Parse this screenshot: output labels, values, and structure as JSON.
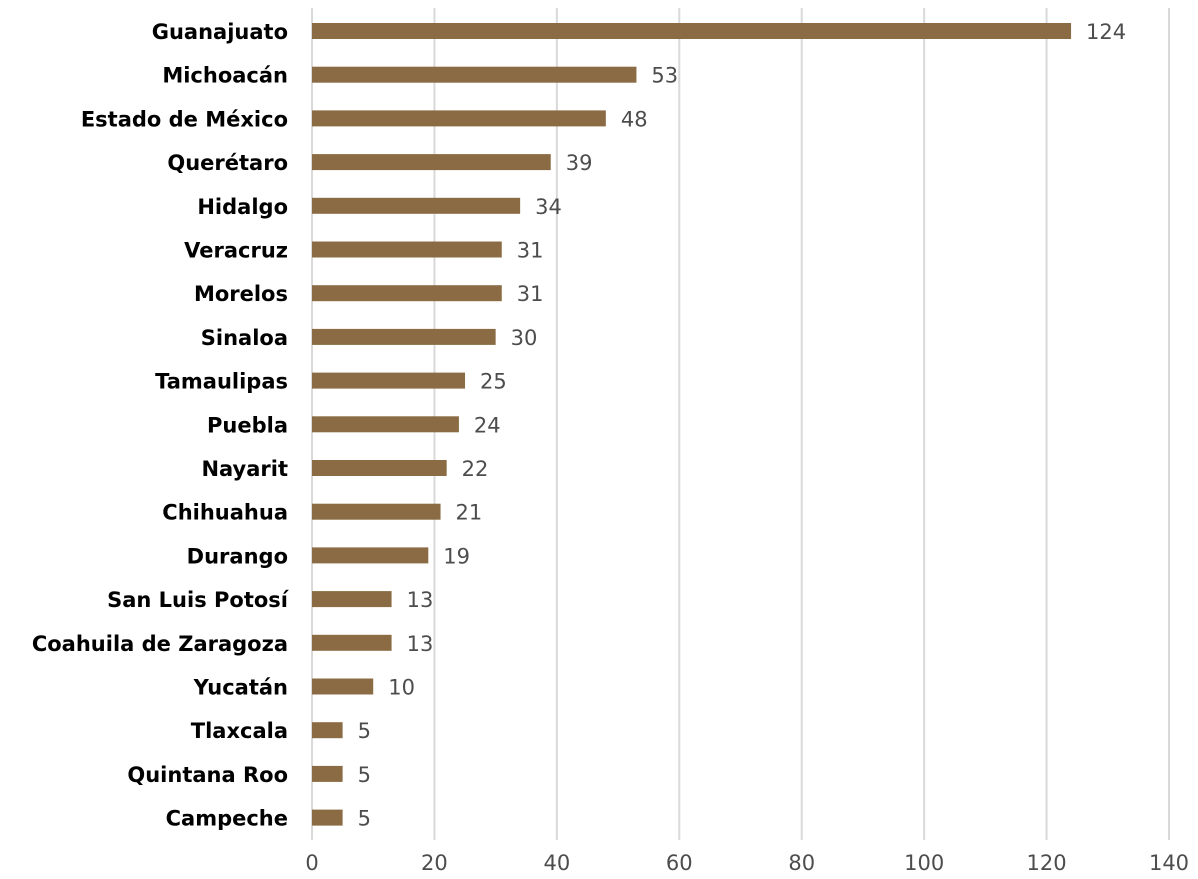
{
  "chart_data": {
    "type": "bar",
    "orientation": "horizontal",
    "categories": [
      "Guanajuato",
      "Michoacán",
      "Estado de México",
      "Querétaro",
      "Hidalgo",
      "Veracruz",
      "Morelos",
      "Sinaloa",
      "Tamaulipas",
      "Puebla",
      "Nayarit",
      "Chihuahua",
      "Durango",
      "San Luis Potosí",
      "Coahuila de Zaragoza",
      "Yucatán",
      "Tlaxcala",
      "Quintana Roo",
      "Campeche"
    ],
    "values": [
      124,
      53,
      48,
      39,
      34,
      31,
      31,
      30,
      25,
      24,
      22,
      21,
      19,
      13,
      13,
      10,
      5,
      5,
      5
    ],
    "xlim": [
      0,
      140
    ],
    "xticks": [
      0,
      20,
      40,
      60,
      80,
      100,
      120,
      140
    ],
    "grid": true,
    "data_labels": true,
    "bar_color": "#8b6b44",
    "title": "",
    "xlabel": "",
    "ylabel": ""
  }
}
